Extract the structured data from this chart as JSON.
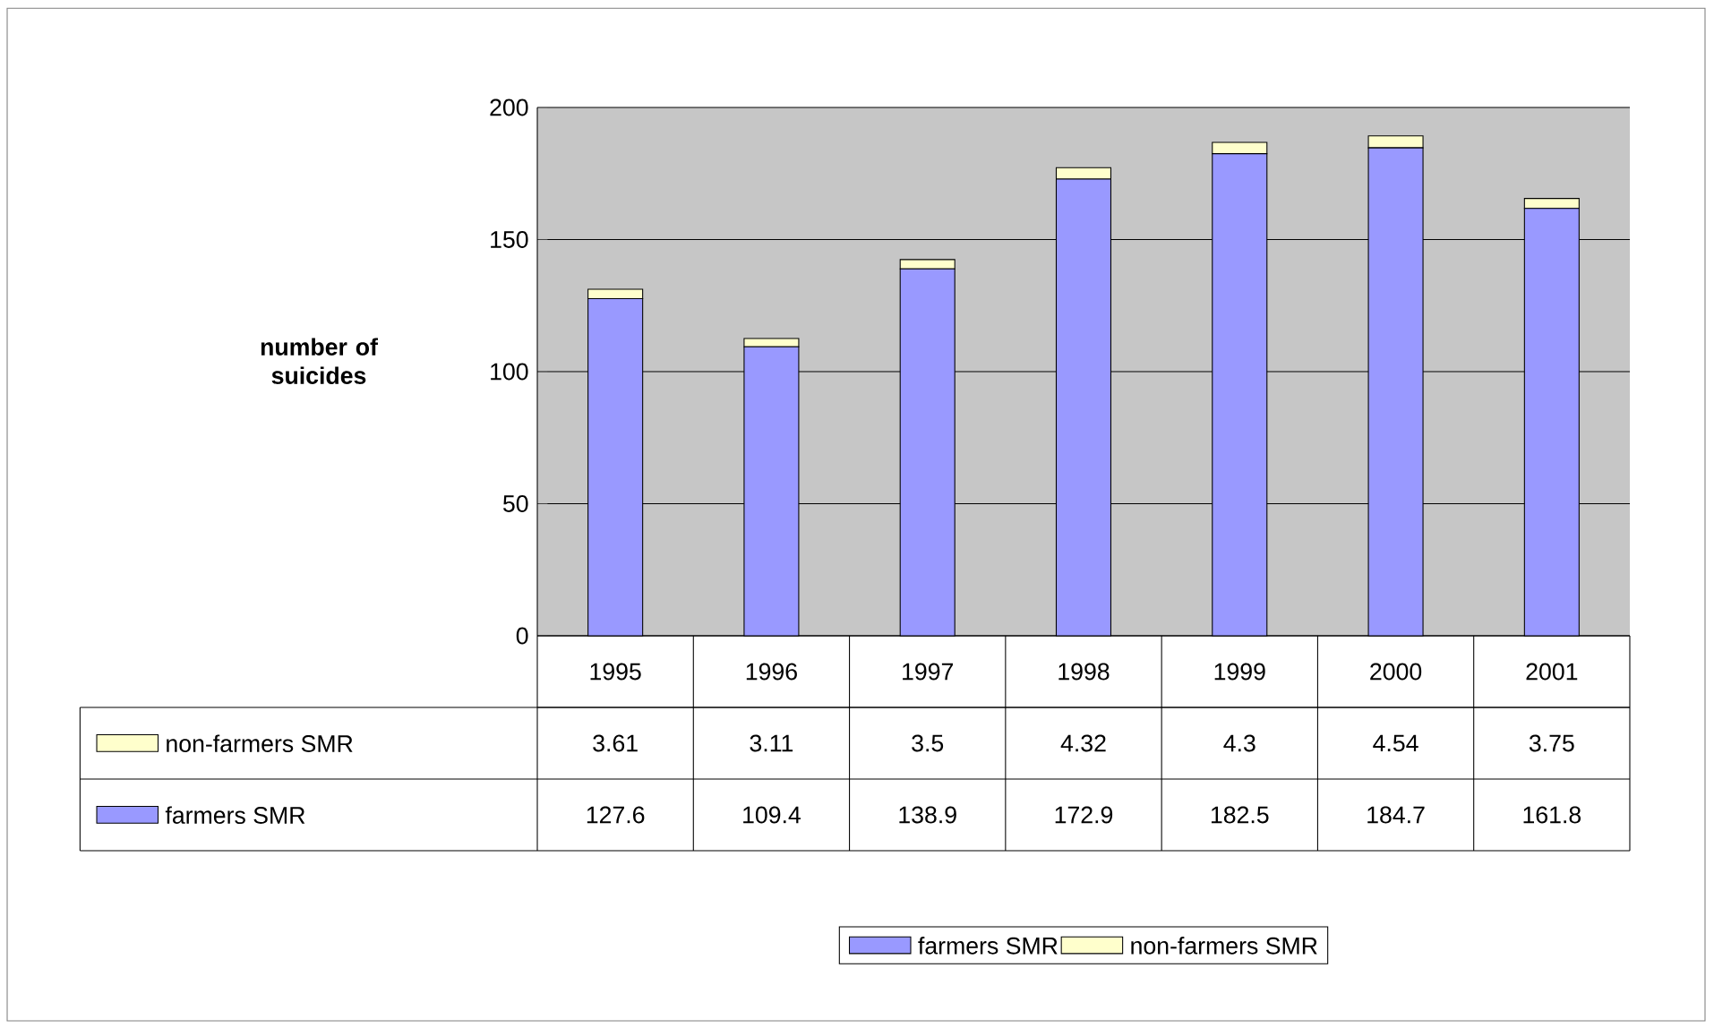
{
  "chart_data": {
    "type": "bar",
    "stacked": true,
    "ylabel": "number of suicides",
    "categories": [
      "1995",
      "1996",
      "1997",
      "1998",
      "1999",
      "2000",
      "2001"
    ],
    "series": [
      {
        "name": "farmers SMR",
        "color": "#9999ff",
        "values": [
          127.6,
          109.4,
          138.9,
          172.9,
          182.5,
          184.7,
          161.8
        ]
      },
      {
        "name": "non-farmers SMR",
        "color": "#ffffcc",
        "values": [
          3.61,
          3.11,
          3.5,
          4.32,
          4.3,
          4.54,
          3.75
        ]
      }
    ],
    "ylim": [
      0,
      200
    ],
    "yticks": [
      0,
      50,
      100,
      150,
      200
    ],
    "grid": "y",
    "legend": "bottom",
    "data_labels": true
  }
}
